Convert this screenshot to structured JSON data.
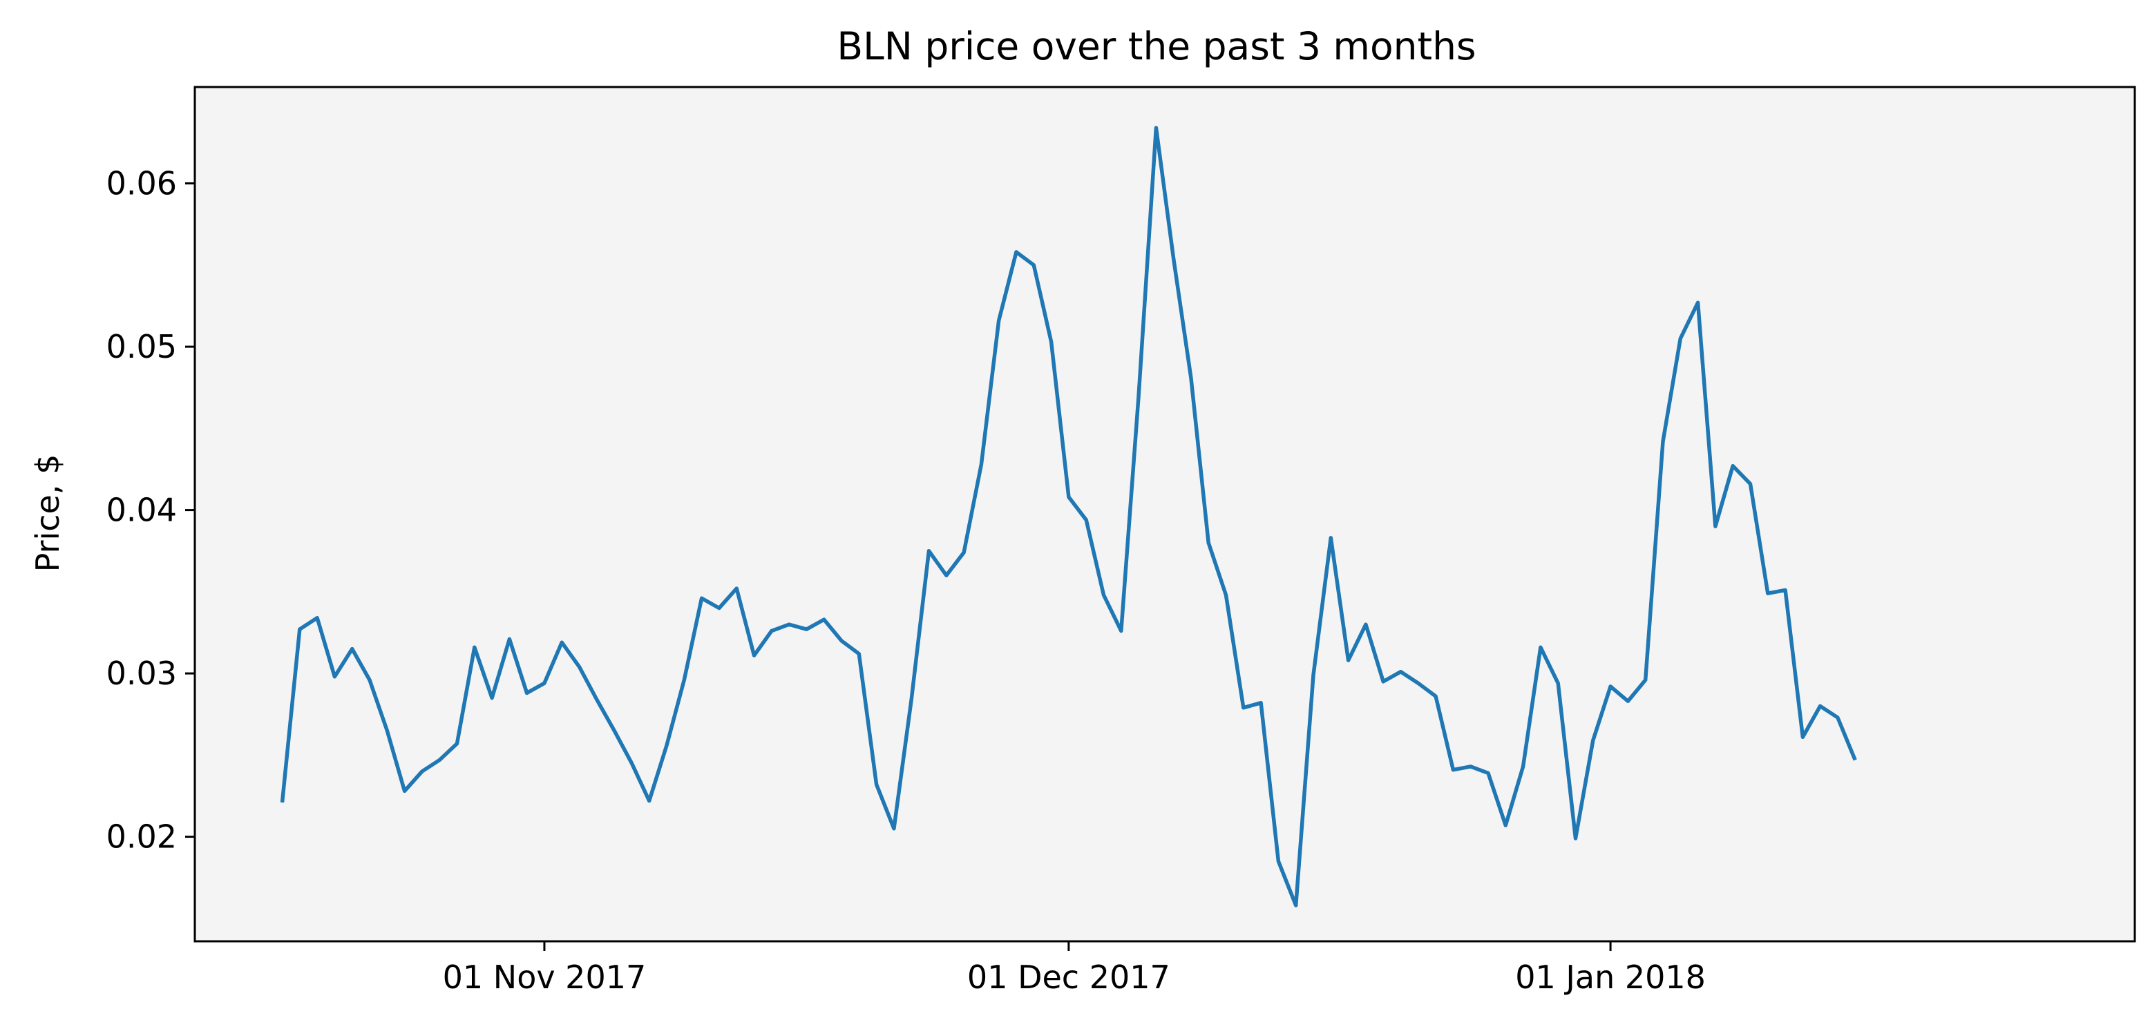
{
  "chart_data": {
    "type": "line",
    "title": "BLN price over the past 3 months",
    "xlabel": "",
    "ylabel": "Price, $",
    "x_start": "2017-10-17",
    "x_ticks": [
      {
        "date": "2017-11-01",
        "label": "01 Nov 2017"
      },
      {
        "date": "2017-12-01",
        "label": "01 Dec 2017"
      },
      {
        "date": "2018-01-01",
        "label": "01 Jan 2018"
      }
    ],
    "y_ticks": [
      {
        "value": 0.02,
        "label": "0.02"
      },
      {
        "value": 0.03,
        "label": "0.03"
      },
      {
        "value": 0.04,
        "label": "0.04"
      },
      {
        "value": 0.05,
        "label": "0.05"
      },
      {
        "value": 0.06,
        "label": "0.06"
      }
    ],
    "xlim": [
      "2017-10-12",
      "2018-01-31"
    ],
    "ylim": [
      0.0136,
      0.0659
    ],
    "grid": false,
    "legend": "none",
    "colors": {
      "line": "#1f77b4",
      "plot_background": "#f4f4f4",
      "axes": "#000000"
    },
    "series": [
      {
        "values": [
          0.0221,
          0.0327,
          0.0334,
          0.0298,
          0.0315,
          0.0296,
          0.0265,
          0.0228,
          0.024,
          0.0247,
          0.0257,
          0.0316,
          0.0285,
          0.0321,
          0.0288,
          0.0294,
          0.0319,
          0.0304,
          0.0284,
          0.0265,
          0.0245,
          0.0222,
          0.0256,
          0.0296,
          0.0346,
          0.034,
          0.0352,
          0.0311,
          0.0326,
          0.033,
          0.0327,
          0.0333,
          0.032,
          0.0312,
          0.0232,
          0.0205,
          0.0284,
          0.0375,
          0.036,
          0.0374,
          0.0428,
          0.0516,
          0.0558,
          0.055,
          0.0503,
          0.0408,
          0.0394,
          0.0348,
          0.0326,
          0.047,
          0.0634,
          0.0554,
          0.0481,
          0.038,
          0.0348,
          0.0279,
          0.0282,
          0.0185,
          0.0158,
          0.0299,
          0.0383,
          0.0308,
          0.033,
          0.0295,
          0.0301,
          0.0294,
          0.0286,
          0.0241,
          0.0243,
          0.0239,
          0.0207,
          0.0243,
          0.0316,
          0.0294,
          0.0199,
          0.0259,
          0.0292,
          0.0283,
          0.0296,
          0.0442,
          0.0505,
          0.0527,
          0.039,
          0.0427,
          0.0416,
          0.0349,
          0.0351,
          0.0261,
          0.028,
          0.0273,
          0.0247
        ]
      }
    ]
  }
}
